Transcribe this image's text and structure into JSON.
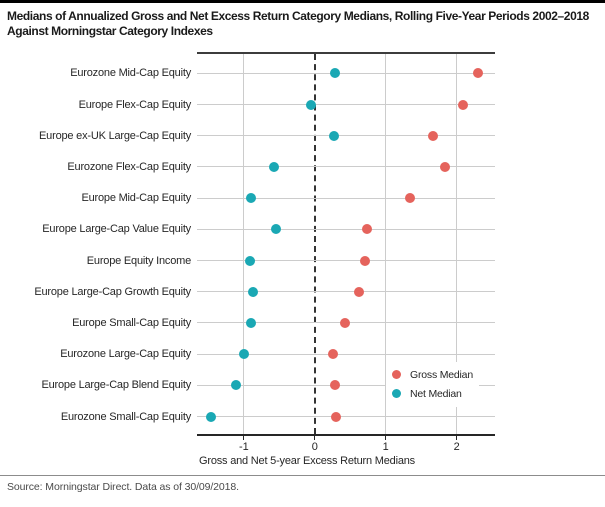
{
  "header": {
    "title_line1": "Medians of Annualized Gross and Net Excess Return Category Medians, Rolling Five-Year Periods 2002–2018",
    "title_line2": "Against Morningstar Category Indexes"
  },
  "footer": {
    "source": "Source: Morningstar Direct. Data as of 30/09/2018."
  },
  "colors": {
    "gross": "#e5635c",
    "net": "#1aa8b4",
    "gridline": "#cccccc",
    "axis": "#262626"
  },
  "chart_data": {
    "type": "scatter",
    "subtype": "horizontal-dot-plot",
    "title": "Medians of Annualized Gross and Net Excess Return Category Medians, Rolling Five-Year Periods 2002–2018 Against Morningstar Category Indexes",
    "xlabel": "Gross and Net 5-year Excess Return Medians",
    "xlim": [
      -1.66,
      2.54
    ],
    "xticks": [
      -1,
      0,
      1,
      2
    ],
    "grid": true,
    "zero_line": "dashed-vertical-at-0",
    "legend_position": "inside-lower-right",
    "categories": [
      "Eurozone Mid-Cap Equity",
      "Europe Flex-Cap Equity",
      "Europe ex-UK Large-Cap Equity",
      "Eurozone Flex-Cap Equity",
      "Europe Mid-Cap Equity",
      "Europe Large-Cap Value Equity",
      "Europe Equity Income",
      "Europe Large-Cap Growth Equity",
      "Europe Small-Cap Equity",
      "Eurozone Large-Cap Equity",
      "Europe Large-Cap Blend Equity",
      "Eurozone Small-Cap Equity"
    ],
    "series": [
      {
        "name": "Gross Median",
        "color": "#e5635c",
        "values": [
          2.3,
          2.09,
          1.66,
          1.84,
          1.34,
          0.74,
          0.71,
          0.62,
          0.42,
          0.26,
          0.29,
          0.3
        ]
      },
      {
        "name": "Net Median",
        "color": "#1aa8b4",
        "values": [
          0.29,
          -0.05,
          0.27,
          -0.58,
          -0.9,
          -0.55,
          -0.92,
          -0.87,
          -0.9,
          -1.0,
          -1.11,
          -1.46
        ]
      }
    ]
  }
}
